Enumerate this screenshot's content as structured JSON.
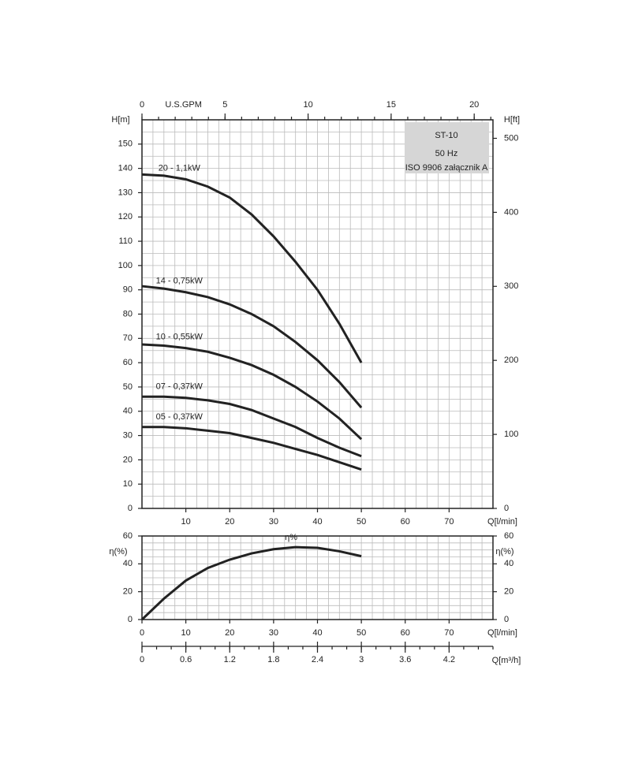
{
  "chart_data": [
    {
      "type": "line",
      "title": "ST-10",
      "subtitle": "50 Hz",
      "note": "ISO 9906 załącznik A",
      "xlabel": "Q[l/min]",
      "ylabel": "H[m]",
      "y2label": "H[ft]",
      "x2label": "U.S.GPM",
      "x": [
        0,
        5,
        10,
        15,
        20,
        25,
        30,
        35,
        40,
        45,
        50
      ],
      "series": [
        {
          "name": "20 - 1,1kW",
          "color": "#222222",
          "values": [
            137.5,
            137,
            135.5,
            132.5,
            128,
            121,
            112,
            101.5,
            90,
            76,
            60
          ]
        },
        {
          "name": "14 - 0,75kW",
          "color": "#222222",
          "values": [
            91.5,
            90.5,
            89,
            87,
            84,
            80,
            75,
            68.5,
            61,
            52,
            41.5
          ]
        },
        {
          "name": "10 - 0,55kW",
          "color": "#222222",
          "values": [
            67.5,
            67,
            66,
            64.5,
            62,
            59,
            55,
            50,
            44,
            37,
            28.5
          ]
        },
        {
          "name": "07 - 0,37kW",
          "color": "#222222",
          "values": [
            46,
            46,
            45.5,
            44.5,
            43,
            40.5,
            37,
            33.5,
            29,
            25,
            21.5
          ]
        },
        {
          "name": "05 - 0,37kW",
          "color": "#222222",
          "values": [
            33.5,
            33.5,
            33,
            32,
            31,
            29,
            27,
            24.5,
            22,
            19,
            16
          ]
        }
      ],
      "xlim": [
        0,
        80
      ],
      "xticks": [
        10,
        20,
        30,
        40,
        50,
        60,
        70
      ],
      "ylim": [
        0,
        160
      ],
      "yticks": [
        0,
        10,
        20,
        30,
        40,
        50,
        60,
        70,
        80,
        90,
        100,
        110,
        120,
        130,
        140,
        150
      ],
      "y2lim": [
        0,
        525
      ],
      "y2ticks": [
        0,
        100,
        200,
        300,
        400,
        500
      ],
      "x2lim": [
        0,
        21.13
      ],
      "x2ticks": [
        0,
        5,
        10,
        15,
        20
      ],
      "grid": {
        "x_step": 2.5,
        "y_step": 5
      }
    },
    {
      "type": "line",
      "xlabel": "Q[l/min]",
      "ylabel": "η(%)",
      "y2label": "η(%)",
      "x3label": "Q[m³/h]",
      "x": [
        0,
        5,
        10,
        15,
        20,
        25,
        30,
        35,
        40,
        45,
        50
      ],
      "series": [
        {
          "name": "η%",
          "color": "#222222",
          "values": [
            0,
            15,
            28,
            37,
            43,
            47.5,
            50.5,
            52,
            51.5,
            49,
            45.5
          ]
        }
      ],
      "xlim": [
        0,
        80
      ],
      "xticks": [
        0,
        10,
        20,
        30,
        40,
        50,
        60,
        70
      ],
      "ylim": [
        0,
        60
      ],
      "yticks": [
        0,
        20,
        40,
        60
      ],
      "y2lim": [
        0,
        60
      ],
      "y2ticks": [
        0,
        20,
        40,
        60
      ],
      "x3lim": [
        0,
        4.8
      ],
      "x3ticks": [
        0,
        0.6,
        1.2,
        1.8,
        2.4,
        3,
        3.6,
        4.2
      ],
      "grid": {
        "x_step": 2.5,
        "y_step": 5
      }
    }
  ]
}
